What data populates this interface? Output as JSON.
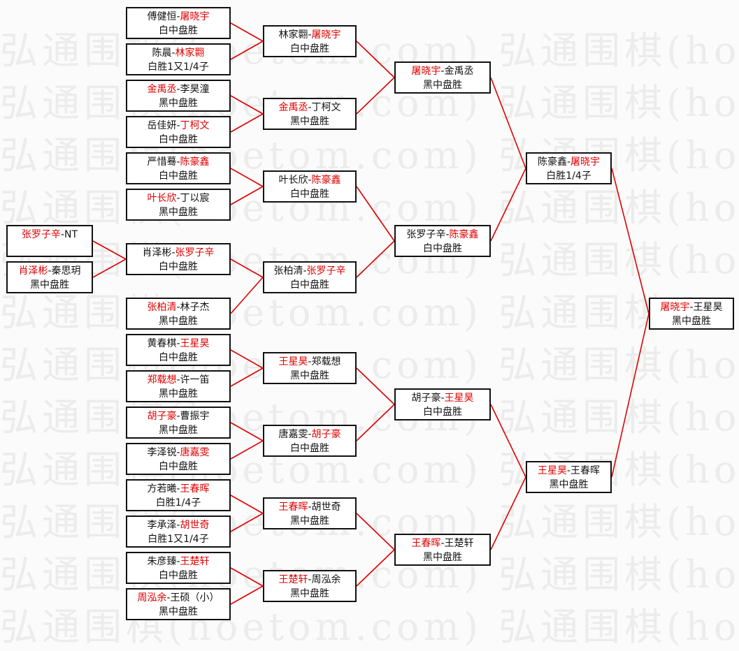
{
  "watermark": "弘通围棋(hoetom.com) 弘通围棋(hoetom.com)",
  "colors": {
    "winner": "#e00000",
    "line": "#e00000",
    "border": "#111111"
  },
  "rounds": [
    {
      "matches": [
        {
          "a": "张罗子辛",
          "b": "NT",
          "winner": "a",
          "result": ""
        },
        {
          "a": "肖泽彬",
          "b": "秦思玥",
          "winner": "a",
          "result": "黑中盘胜"
        }
      ]
    },
    {
      "matches": [
        {
          "a": "傅健恒",
          "b": "屠晓宇",
          "winner": "b",
          "result": "白中盘胜"
        },
        {
          "a": "陈晨",
          "b": "林家翾",
          "winner": "b",
          "result": "白胜1又1/4子"
        },
        {
          "a": "金禹丞",
          "b": "李昊潼",
          "winner": "a",
          "result": "黑中盘胜"
        },
        {
          "a": "岳佳妍",
          "b": "丁柯文",
          "winner": "b",
          "result": "白中盘胜"
        },
        {
          "a": "严惜蓦",
          "b": "陈豪鑫",
          "winner": "b",
          "result": "白中盘胜"
        },
        {
          "a": "叶长欣",
          "b": "丁以宸",
          "winner": "a",
          "result": "黑中盘胜"
        },
        {
          "a": "肖泽彬",
          "b": "张罗子辛",
          "winner": "b",
          "result": "白中盘胜"
        },
        {
          "a": "张柏清",
          "b": "林子杰",
          "winner": "a",
          "result": "黑中盘胜"
        },
        {
          "a": "黄春棋",
          "b": "王星昊",
          "winner": "b",
          "result": "白中盘胜"
        },
        {
          "a": "郑载想",
          "b": "许一笛",
          "winner": "a",
          "result": "黑中盘胜"
        },
        {
          "a": "胡子豪",
          "b": "曹振宇",
          "winner": "a",
          "result": "黑中盘胜"
        },
        {
          "a": "李泽锐",
          "b": "唐嘉雯",
          "winner": "b",
          "result": "白中盘胜"
        },
        {
          "a": "方若曦",
          "b": "王春晖",
          "winner": "b",
          "result": "白胜1/4子"
        },
        {
          "a": "李承泽",
          "b": "胡世奇",
          "winner": "b",
          "result": "白胜1又1/4子"
        },
        {
          "a": "朱彦臻",
          "b": "王楚轩",
          "winner": "b",
          "result": "白中盘胜"
        },
        {
          "a": "周泓余",
          "b": "王硕（小）",
          "winner": "a",
          "result": "黑中盘胜"
        }
      ]
    },
    {
      "matches": [
        {
          "a": "林家翾",
          "b": "屠晓宇",
          "winner": "b",
          "result": "白中盘胜"
        },
        {
          "a": "金禹丞",
          "b": "丁柯文",
          "winner": "a",
          "result": "黑中盘胜"
        },
        {
          "a": "叶长欣",
          "b": "陈豪鑫",
          "winner": "b",
          "result": "白中盘胜"
        },
        {
          "a": "张柏清",
          "b": "张罗子辛",
          "winner": "b",
          "result": "白中盘胜"
        },
        {
          "a": "王星昊",
          "b": "郑载想",
          "winner": "a",
          "result": "黑中盘胜"
        },
        {
          "a": "唐嘉雯",
          "b": "胡子豪",
          "winner": "b",
          "result": "白中盘胜"
        },
        {
          "a": "王春晖",
          "b": "胡世奇",
          "winner": "a",
          "result": "黑中盘胜"
        },
        {
          "a": "王楚轩",
          "b": "周泓余",
          "winner": "a",
          "result": "黑中盘胜"
        }
      ]
    },
    {
      "matches": [
        {
          "a": "屠晓宇",
          "b": "金禹丞",
          "winner": "a",
          "result": "黑中盘胜"
        },
        {
          "a": "张罗子辛",
          "b": "陈豪鑫",
          "winner": "b",
          "result": "白中盘胜"
        },
        {
          "a": "胡子豪",
          "b": "王星昊",
          "winner": "b",
          "result": "白中盘胜"
        },
        {
          "a": "王春晖",
          "b": "王楚轩",
          "winner": "a",
          "result": "黑中盘胜"
        }
      ]
    },
    {
      "matches": [
        {
          "a": "陈豪鑫",
          "b": "屠晓宇",
          "winner": "b",
          "result": "白胜1/4子"
        },
        {
          "a": "王星昊",
          "b": "王春晖",
          "winner": "a",
          "result": "黑中盘胜"
        }
      ]
    },
    {
      "matches": [
        {
          "a": "屠晓宇",
          "b": "王星昊",
          "winner": "a",
          "result": "黑中盘胜"
        }
      ]
    }
  ]
}
